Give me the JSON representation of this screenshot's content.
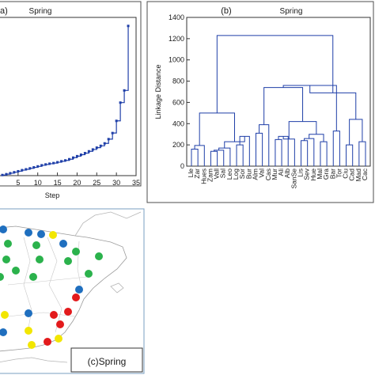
{
  "chart_data": [
    {
      "panel": "a",
      "panel_label": "a)",
      "type": "line",
      "title": "Spring",
      "xlabel": "Step",
      "ylabel": "",
      "xlim": [
        0,
        35
      ],
      "ylim": [
        0,
        1300
      ],
      "xticks": [
        5,
        10,
        15,
        20,
        25,
        30,
        35
      ],
      "x": [
        1,
        2,
        3,
        4,
        5,
        6,
        7,
        8,
        9,
        10,
        11,
        12,
        13,
        14,
        15,
        16,
        17,
        18,
        19,
        20,
        21,
        22,
        23,
        24,
        25,
        26,
        27,
        28,
        29,
        30,
        31,
        32,
        33
      ],
      "y": [
        5,
        12,
        20,
        28,
        36,
        45,
        52,
        60,
        68,
        76,
        85,
        92,
        98,
        103,
        110,
        118,
        125,
        135,
        148,
        160,
        172,
        185,
        200,
        215,
        230,
        245,
        265,
        300,
        350,
        450,
        600,
        700,
        1230
      ],
      "grid": false,
      "legend": "none"
    },
    {
      "panel": "b",
      "panel_label": "(b)",
      "type": "dendrogram",
      "title": "Spring",
      "ylabel": "Linkage Distance",
      "xlabel": "",
      "ylim": [
        0,
        1400
      ],
      "yticks": [
        0,
        200,
        400,
        600,
        800,
        1000,
        1200,
        1400
      ],
      "leaves": [
        "Lle",
        "Zar",
        "Hues",
        "Zam",
        "Vall",
        "Sal",
        "Leo",
        "Log",
        "Sor",
        "Bur",
        "Alm",
        "Val",
        "Cas",
        "Mur",
        "Ali",
        "Alb",
        "SanSe",
        "Lis",
        "Sev",
        "Hue",
        "Mal",
        "Gra",
        "Bar",
        "Tor",
        "Ciu",
        "Cad",
        "Mad",
        "Cac"
      ],
      "grid": false
    },
    {
      "panel": "c",
      "type": "map",
      "caption": "(c)Spring",
      "cluster_colors": {
        "cluster_1": "#1f6fbf",
        "cluster_2": "#2bb24c",
        "cluster_3": "#f2e600",
        "cluster_4": "#e31a1c"
      }
    }
  ]
}
